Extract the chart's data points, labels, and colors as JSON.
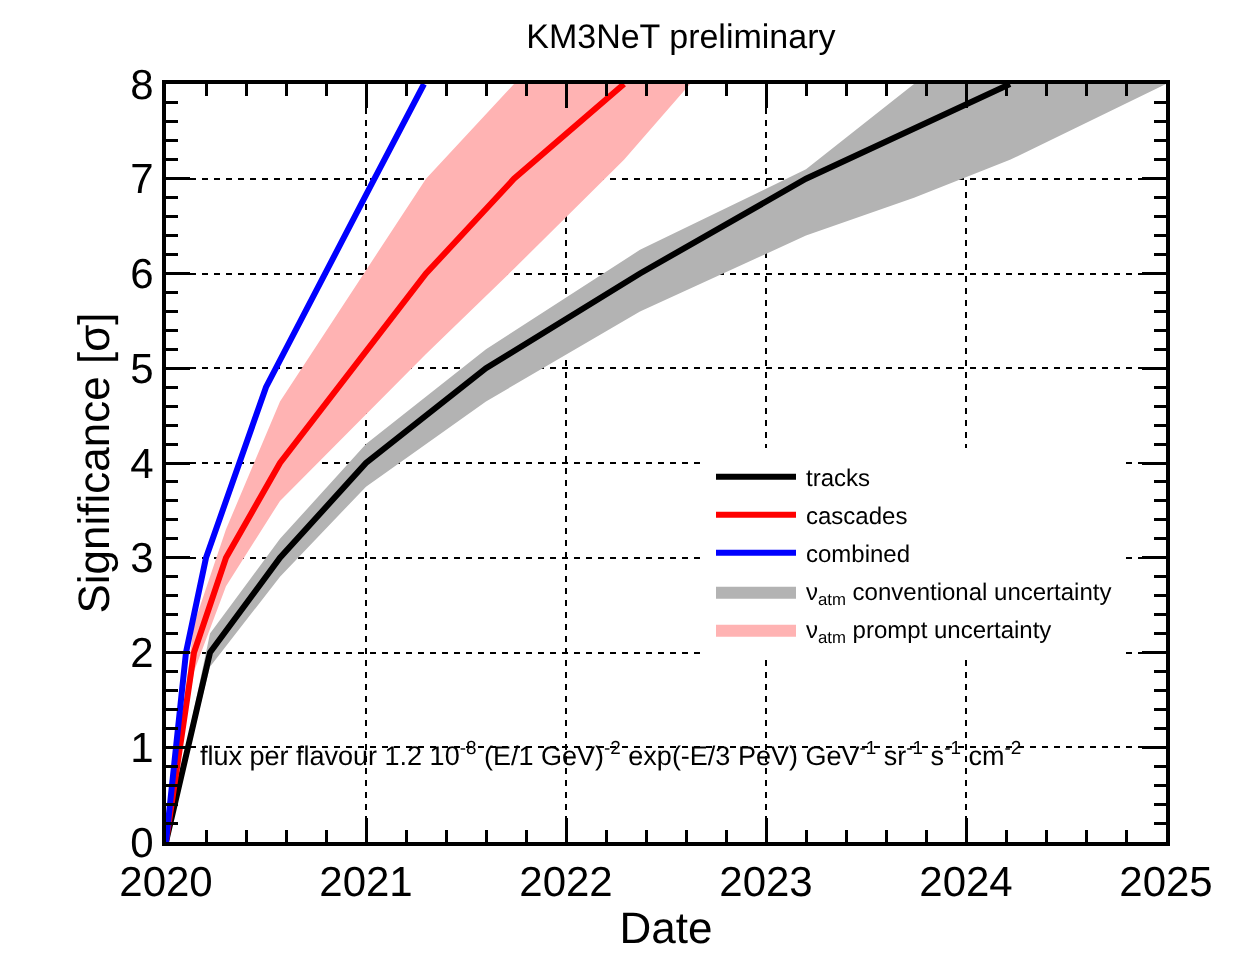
{
  "chart_data": {
    "type": "line",
    "title": "KM3NeT preliminary",
    "xlabel": "Date",
    "ylabel": "Significance [σ]",
    "xlim": [
      2020,
      2025
    ],
    "xticks": [
      2020,
      2021,
      2022,
      2023,
      2024,
      2025
    ],
    "ylim": [
      0,
      8
    ],
    "yticks": [
      0,
      1,
      2,
      3,
      4,
      5,
      6,
      7,
      8
    ],
    "grid": true,
    "legend": "right",
    "line_style": "solid",
    "marker": "none",
    "series": [
      {
        "name": "tracks",
        "color": "#000000",
        "x": [
          2020,
          2020.22,
          2020.57,
          2021,
          2021.6,
          2022.37,
          2023.2,
          2024.22
        ],
        "values": [
          0,
          2.0,
          3.0,
          4.0,
          5.0,
          6.0,
          7.0,
          8.0
        ]
      },
      {
        "name": "cascades",
        "color": "#ff0000",
        "x": [
          2020,
          2020.14,
          2020.3,
          2020.57,
          2021.3,
          2021.74,
          2022.29
        ],
        "values": [
          0,
          2.0,
          3.0,
          4.0,
          6.0,
          7.0,
          8.0
        ]
      },
      {
        "name": "combined",
        "color": "#0000ff",
        "x": [
          2020,
          2020.1,
          2020.2,
          2020.5,
          2021.03,
          2021.29
        ],
        "values": [
          0,
          2.0,
          3.0,
          4.8,
          6.95,
          8.0
        ]
      },
      {
        "name": "ν$_{atm}$ conventional uncertainty",
        "type": "area",
        "color": "#b3b3b3",
        "x": [
          2020,
          2020.22,
          2020.57,
          2021,
          2021.6,
          2022.37,
          2023.2,
          2023.74,
          2024.22,
          2025
        ],
        "values": [
          null,
          null,
          null,
          null,
          null,
          null,
          null,
          null,
          null,
          null
        ],
        "upper": [
          0,
          2.2,
          3.2,
          4.2,
          5.2,
          6.25,
          7.1,
          8,
          8,
          8
        ],
        "lower": [
          0,
          1.85,
          2.8,
          3.75,
          4.65,
          5.6,
          6.4,
          6.8,
          7.2,
          8
        ]
      },
      {
        "name": "ν$_{atm}$ prompt uncertainty",
        "type": "area",
        "color": "#ffb3b3",
        "x": [
          2020,
          2020.14,
          2020.3,
          2020.57,
          2021.3,
          2021.74,
          2022.29,
          2022.62
        ],
        "values": [
          null,
          null,
          null,
          null,
          null,
          null,
          null,
          null
        ],
        "upper": [
          0,
          2.3,
          3.3,
          4.65,
          7.0,
          8,
          8,
          8
        ],
        "lower": [
          0,
          1.8,
          2.7,
          3.6,
          5.15,
          6.05,
          7.2,
          8
        ]
      }
    ],
    "annotations": [
      "flux per flavour 1.2 10$^{-8}$ (E/1 GeV)$^{-2}$ exp(-E/3 PeV) GeV$^{-1}$ sr$^{-1}$ s$^{-1}$ cm$^{-2}$"
    ]
  }
}
